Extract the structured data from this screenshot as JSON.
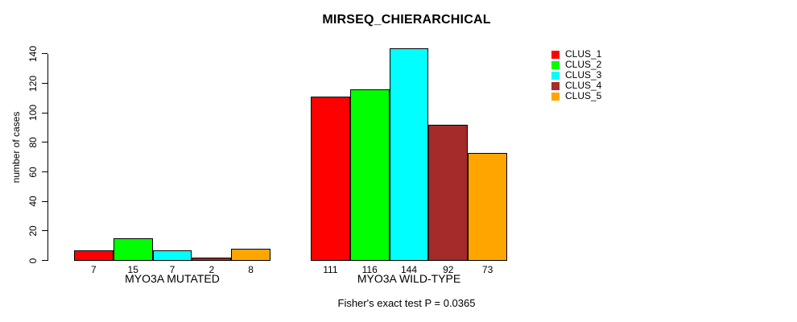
{
  "chart_data": {
    "type": "bar",
    "title": "MIRSEQ_CHIERARCHICAL",
    "ylabel": "number of cases",
    "xlabel": "",
    "annotation": "Fisher's exact test P = 0.0365",
    "yticks": [
      0,
      20,
      40,
      60,
      80,
      100,
      120,
      140
    ],
    "ylim": [
      0,
      150
    ],
    "grid": false,
    "legend_position": "top-right",
    "bar_value_labels_shown": true,
    "categories": [
      "MYO3A MUTATED",
      "MYO3A WILD-TYPE"
    ],
    "groups": [
      {
        "label": "MYO3A MUTATED",
        "values": [
          7,
          15,
          7,
          2,
          8
        ]
      },
      {
        "label": "MYO3A WILD-TYPE",
        "values": [
          111,
          116,
          144,
          92,
          73
        ]
      }
    ],
    "series": [
      {
        "name": "CLUS_1",
        "color": "#FF0000"
      },
      {
        "name": "CLUS_2",
        "color": "#00FF00"
      },
      {
        "name": "CLUS_3",
        "color": "#00FFFF"
      },
      {
        "name": "CLUS_4",
        "color": "#A52A2A"
      },
      {
        "name": "CLUS_5",
        "color": "#FFA500"
      }
    ],
    "colors": {
      "background": "#FFFFFF",
      "axis": "#000000",
      "text": "#000000",
      "bar_border": "#000000"
    }
  }
}
